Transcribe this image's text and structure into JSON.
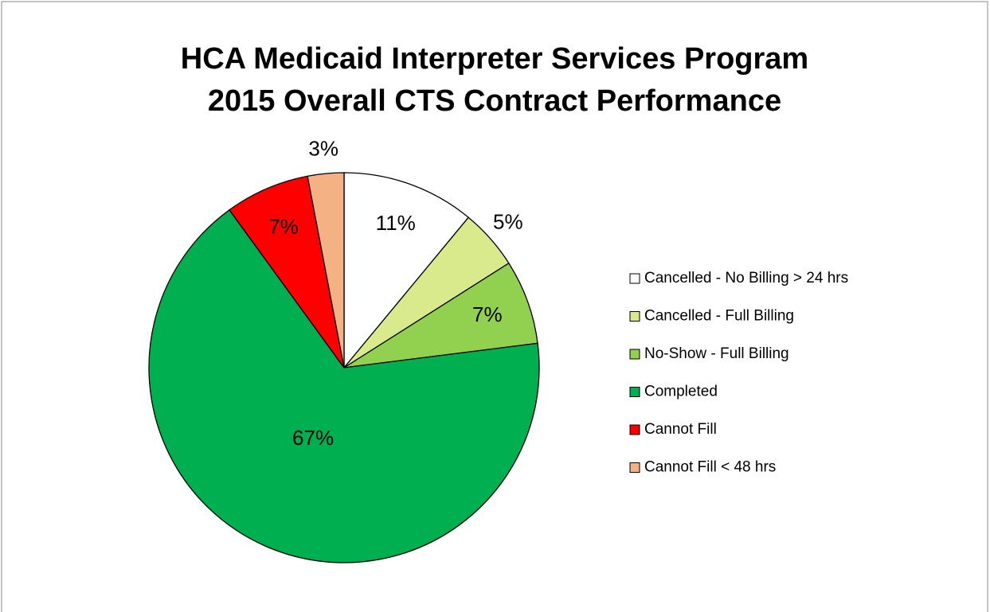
{
  "chart_data": {
    "type": "pie",
    "title": [
      "HCA Medicaid Interpreter Services Program",
      "2015 Overall CTS Contract Performance"
    ],
    "categories": [
      "Cancelled - No Billing > 24 hrs",
      "Cancelled - Full Billing",
      "No-Show - Full Billing",
      "Completed",
      "Cannot Fill",
      "Cannot Fill < 48 hrs"
    ],
    "values": [
      11,
      5,
      7,
      67,
      7,
      3
    ],
    "value_labels": [
      "11%",
      "5%",
      "7%",
      "67%",
      "7%",
      "3%"
    ],
    "colors": [
      "#ffffff",
      "#d9ea8c",
      "#92d050",
      "#00b050",
      "#ff0000",
      "#f4b183"
    ],
    "legend": "right"
  }
}
